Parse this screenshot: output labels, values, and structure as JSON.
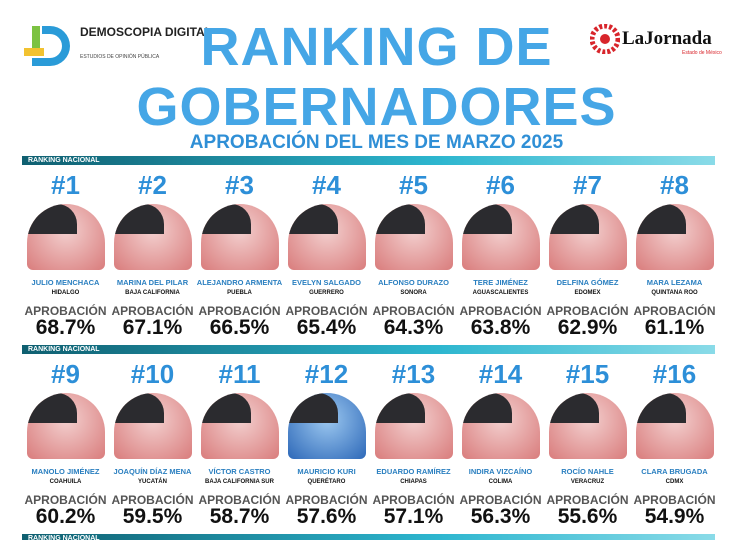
{
  "header": {
    "logo_left": {
      "name": "DEMOSCOPIA DIGITAL",
      "tagline": "ESTUDIOS DE OPINIÓN PÚBLICA"
    },
    "logo_right": {
      "name": "LaJornada",
      "tagline": "Estado de México"
    },
    "title": [
      "RANKING DE",
      "GOBERNADORES"
    ],
    "subtitle": "APROBACIÓN DEL MES DE MARZO 2025"
  },
  "bands": [
    "RANKING NACIONAL",
    "RANKING NACIONAL",
    "RANKING NACIONAL"
  ],
  "approval_label": "APROBACIÓN",
  "governors": [
    {
      "rank": "#1",
      "name": "JULIO MENCHACA",
      "state": "HIDALGO",
      "approval": "68.7%"
    },
    {
      "rank": "#2",
      "name": "MARINA DEL PILAR",
      "state": "BAJA CALIFORNIA",
      "approval": "67.1%"
    },
    {
      "rank": "#3",
      "name": "ALEJANDRO ARMENTA",
      "state": "PUEBLA",
      "approval": "66.5%"
    },
    {
      "rank": "#4",
      "name": "EVELYN SALGADO",
      "state": "GUERRERO",
      "approval": "65.4%"
    },
    {
      "rank": "#5",
      "name": "ALFONSO DURAZO",
      "state": "SONORA",
      "approval": "64.3%"
    },
    {
      "rank": "#6",
      "name": "TERE JIMÉNEZ",
      "state": "AGUASCALIENTES",
      "approval": "63.8%"
    },
    {
      "rank": "#7",
      "name": "DELFINA GÓMEZ",
      "state": "EDOMEX",
      "approval": "62.9%"
    },
    {
      "rank": "#8",
      "name": "MARA LEZAMA",
      "state": "QUINTANA ROO",
      "approval": "61.1%"
    },
    {
      "rank": "#9",
      "name": "MANOLO JIMÉNEZ",
      "state": "COAHUILA",
      "approval": "60.2%"
    },
    {
      "rank": "#10",
      "name": "JOAQUÍN DÍAZ MENA",
      "state": "YUCATÁN",
      "approval": "59.5%"
    },
    {
      "rank": "#11",
      "name": "VÍCTOR CASTRO",
      "state": "BAJA CALIFORNIA SUR",
      "approval": "58.7%"
    },
    {
      "rank": "#12",
      "name": "MAURICIO KURI",
      "state": "QUERÉTARO",
      "approval": "57.6%"
    },
    {
      "rank": "#13",
      "name": "EDUARDO RAMÍREZ",
      "state": "CHIAPAS",
      "approval": "57.1%"
    },
    {
      "rank": "#14",
      "name": "INDIRA VIZCAÍNO",
      "state": "COLIMA",
      "approval": "56.3%"
    },
    {
      "rank": "#15",
      "name": "ROCÍO NAHLE",
      "state": "VERACRUZ",
      "approval": "55.6%"
    },
    {
      "rank": "#16",
      "name": "CLARA BRUGADA",
      "state": "CDMX",
      "approval": "54.9%"
    }
  ]
}
